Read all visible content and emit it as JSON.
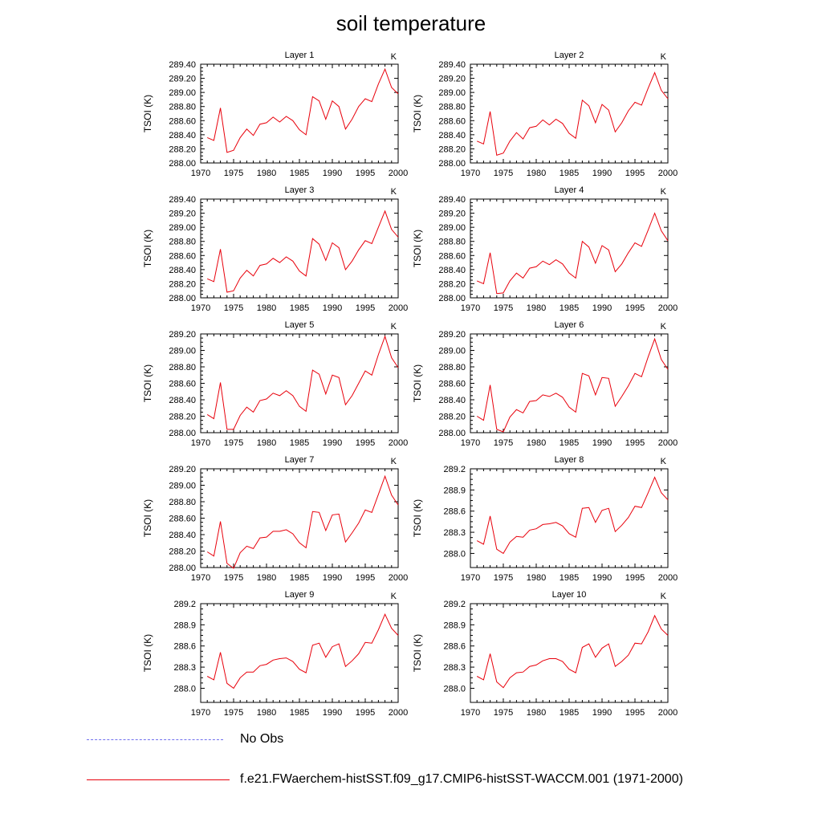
{
  "title": "soil temperature",
  "legend": {
    "obs_label": "No Obs",
    "model_label": "f.e21.FWaerchem-histSST.f09_g17.CMIP6-histSST-WACCM.001 (1971-2000)",
    "obs_color": "#7070ee",
    "model_color": "#e8000b"
  },
  "chart_data": [
    {
      "type": "line",
      "title": "Layer 1",
      "units": "K",
      "ylabel": "TSOI  (K)",
      "xlim": [
        1970,
        2000
      ],
      "ylim": [
        288.0,
        289.4
      ],
      "xticks": [
        1970,
        1975,
        1980,
        1985,
        1990,
        1995,
        2000
      ],
      "yticks": [
        "288.00",
        "288.20",
        "288.40",
        "288.60",
        "288.80",
        "289.00",
        "289.20",
        "289.40"
      ],
      "x": [
        1971,
        1972,
        1973,
        1974,
        1975,
        1976,
        1977,
        1978,
        1979,
        1980,
        1981,
        1982,
        1983,
        1984,
        1985,
        1986,
        1987,
        1988,
        1989,
        1990,
        1991,
        1992,
        1993,
        1994,
        1995,
        1996,
        1997,
        1998,
        1999,
        2000
      ],
      "series": [
        {
          "values": [
            288.36,
            288.32,
            288.78,
            288.15,
            288.18,
            288.36,
            288.48,
            288.39,
            288.55,
            288.57,
            288.65,
            288.58,
            288.66,
            288.6,
            288.47,
            288.4,
            288.94,
            288.88,
            288.62,
            288.88,
            288.8,
            288.48,
            288.62,
            288.8,
            288.91,
            288.87,
            289.12,
            289.33,
            289.07,
            288.98
          ]
        }
      ]
    },
    {
      "type": "line",
      "title": "Layer 2",
      "units": "K",
      "ylabel": "TSOI  (K)",
      "xlim": [
        1970,
        2000
      ],
      "ylim": [
        288.0,
        289.4
      ],
      "xticks": [
        1970,
        1975,
        1980,
        1985,
        1990,
        1995,
        2000
      ],
      "yticks": [
        "288.00",
        "288.20",
        "288.40",
        "288.60",
        "288.80",
        "289.00",
        "289.20",
        "289.40"
      ],
      "x": [
        1971,
        1972,
        1973,
        1974,
        1975,
        1976,
        1977,
        1978,
        1979,
        1980,
        1981,
        1982,
        1983,
        1984,
        1985,
        1986,
        1987,
        1988,
        1989,
        1990,
        1991,
        1992,
        1993,
        1994,
        1995,
        1996,
        1997,
        1998,
        1999,
        2000
      ],
      "series": [
        {
          "values": [
            288.31,
            288.27,
            288.73,
            288.11,
            288.14,
            288.31,
            288.43,
            288.34,
            288.5,
            288.52,
            288.61,
            288.54,
            288.62,
            288.56,
            288.42,
            288.35,
            288.89,
            288.81,
            288.57,
            288.83,
            288.75,
            288.44,
            288.57,
            288.74,
            288.86,
            288.82,
            289.06,
            289.28,
            289.03,
            288.91
          ]
        }
      ]
    },
    {
      "type": "line",
      "title": "Layer 3",
      "units": "K",
      "ylabel": "TSOI  (K)",
      "xlim": [
        1970,
        2000
      ],
      "ylim": [
        288.0,
        289.4
      ],
      "xticks": [
        1970,
        1975,
        1980,
        1985,
        1990,
        1995,
        2000
      ],
      "yticks": [
        "288.00",
        "288.20",
        "288.40",
        "288.60",
        "288.80",
        "289.00",
        "289.20",
        "289.40"
      ],
      "x": [
        1971,
        1972,
        1973,
        1974,
        1975,
        1976,
        1977,
        1978,
        1979,
        1980,
        1981,
        1982,
        1983,
        1984,
        1985,
        1986,
        1987,
        1988,
        1989,
        1990,
        1991,
        1992,
        1993,
        1994,
        1995,
        1996,
        1997,
        1998,
        1999,
        2000
      ],
      "series": [
        {
          "values": [
            288.27,
            288.23,
            288.69,
            288.08,
            288.1,
            288.28,
            288.39,
            288.31,
            288.46,
            288.48,
            288.56,
            288.5,
            288.58,
            288.52,
            288.38,
            288.31,
            288.84,
            288.76,
            288.53,
            288.78,
            288.71,
            288.4,
            288.52,
            288.68,
            288.81,
            288.77,
            289.0,
            289.23,
            288.97,
            288.86
          ]
        }
      ]
    },
    {
      "type": "line",
      "title": "Layer 4",
      "units": "K",
      "ylabel": "TSOI  (K)",
      "xlim": [
        1970,
        2000
      ],
      "ylim": [
        288.0,
        289.4
      ],
      "xticks": [
        1970,
        1975,
        1980,
        1985,
        1990,
        1995,
        2000
      ],
      "yticks": [
        "288.00",
        "288.20",
        "288.40",
        "288.60",
        "288.80",
        "289.00",
        "289.20",
        "289.40"
      ],
      "x": [
        1971,
        1972,
        1973,
        1974,
        1975,
        1976,
        1977,
        1978,
        1979,
        1980,
        1981,
        1982,
        1983,
        1984,
        1985,
        1986,
        1987,
        1988,
        1989,
        1990,
        1991,
        1992,
        1993,
        1994,
        1995,
        1996,
        1997,
        1998,
        1999,
        2000
      ],
      "series": [
        {
          "values": [
            288.24,
            288.2,
            288.64,
            288.06,
            288.07,
            288.24,
            288.35,
            288.28,
            288.42,
            288.44,
            288.52,
            288.47,
            288.54,
            288.48,
            288.35,
            288.28,
            288.8,
            288.72,
            288.49,
            288.74,
            288.68,
            288.37,
            288.48,
            288.64,
            288.78,
            288.73,
            288.96,
            289.2,
            288.95,
            288.81
          ]
        }
      ]
    },
    {
      "type": "line",
      "title": "Layer 5",
      "units": "K",
      "ylabel": "TSOI  (K)",
      "xlim": [
        1970,
        2000
      ],
      "ylim": [
        288.0,
        289.2
      ],
      "xticks": [
        1970,
        1975,
        1980,
        1985,
        1990,
        1995,
        2000
      ],
      "yticks": [
        "288.00",
        "288.20",
        "288.40",
        "288.60",
        "288.80",
        "289.00",
        "289.20"
      ],
      "x": [
        1971,
        1972,
        1973,
        1974,
        1975,
        1976,
        1977,
        1978,
        1979,
        1980,
        1981,
        1982,
        1983,
        1984,
        1985,
        1986,
        1987,
        1988,
        1989,
        1990,
        1991,
        1992,
        1993,
        1994,
        1995,
        1996,
        1997,
        1998,
        1999,
        2000
      ],
      "series": [
        {
          "values": [
            288.22,
            288.17,
            288.61,
            288.04,
            288.04,
            288.21,
            288.31,
            288.25,
            288.39,
            288.41,
            288.48,
            288.45,
            288.51,
            288.45,
            288.32,
            288.26,
            288.76,
            288.71,
            288.47,
            288.7,
            288.67,
            288.34,
            288.45,
            288.6,
            288.75,
            288.7,
            288.95,
            289.17,
            288.91,
            288.79
          ]
        }
      ]
    },
    {
      "type": "line",
      "title": "Layer 6",
      "units": "K",
      "ylabel": "TSOI  (K)",
      "xlim": [
        1970,
        2000
      ],
      "ylim": [
        288.0,
        289.2
      ],
      "xticks": [
        1970,
        1975,
        1980,
        1985,
        1990,
        1995,
        2000
      ],
      "yticks": [
        "288.00",
        "288.20",
        "288.40",
        "288.60",
        "288.80",
        "289.00",
        "289.20"
      ],
      "x": [
        1971,
        1972,
        1973,
        1974,
        1975,
        1976,
        1977,
        1978,
        1979,
        1980,
        1981,
        1982,
        1983,
        1984,
        1985,
        1986,
        1987,
        1988,
        1989,
        1990,
        1991,
        1992,
        1993,
        1994,
        1995,
        1996,
        1997,
        1998,
        1999,
        2000
      ],
      "series": [
        {
          "values": [
            288.2,
            288.15,
            288.58,
            288.04,
            288.01,
            288.19,
            288.28,
            288.24,
            288.38,
            288.39,
            288.46,
            288.44,
            288.48,
            288.43,
            288.31,
            288.25,
            288.72,
            288.69,
            288.46,
            288.67,
            288.66,
            288.32,
            288.44,
            288.57,
            288.72,
            288.68,
            288.92,
            289.14,
            288.89,
            288.77
          ]
        }
      ]
    },
    {
      "type": "line",
      "title": "Layer 7",
      "units": "K",
      "ylabel": "TSOI  (K)",
      "xlim": [
        1970,
        2000
      ],
      "ylim": [
        288.0,
        289.2
      ],
      "xticks": [
        1970,
        1975,
        1980,
        1985,
        1990,
        1995,
        2000
      ],
      "yticks": [
        "288.00",
        "288.20",
        "288.40",
        "288.60",
        "288.80",
        "289.00",
        "289.20"
      ],
      "x": [
        1971,
        1972,
        1973,
        1974,
        1975,
        1976,
        1977,
        1978,
        1979,
        1980,
        1981,
        1982,
        1983,
        1984,
        1985,
        1986,
        1987,
        1988,
        1989,
        1990,
        1991,
        1992,
        1993,
        1994,
        1995,
        1996,
        1997,
        1998,
        1999,
        2000
      ],
      "series": [
        {
          "values": [
            288.19,
            288.14,
            288.56,
            288.05,
            287.99,
            288.18,
            288.26,
            288.23,
            288.36,
            288.37,
            288.44,
            288.44,
            288.46,
            288.41,
            288.3,
            288.24,
            288.68,
            288.67,
            288.45,
            288.64,
            288.65,
            288.31,
            288.42,
            288.54,
            288.7,
            288.67,
            288.89,
            289.11,
            288.88,
            288.76
          ]
        }
      ]
    },
    {
      "type": "line",
      "title": "Layer 8",
      "units": "K",
      "ylabel": "TSOI  (K)",
      "xlim": [
        1970,
        2000
      ],
      "ylim": [
        287.8,
        289.2
      ],
      "xticks": [
        1970,
        1975,
        1980,
        1985,
        1990,
        1995,
        2000
      ],
      "yticks": [
        "288.0",
        "288.3",
        "288.6",
        "288.9",
        "289.2"
      ],
      "x": [
        1971,
        1972,
        1973,
        1974,
        1975,
        1976,
        1977,
        1978,
        1979,
        1980,
        1981,
        1982,
        1983,
        1984,
        1985,
        1986,
        1987,
        1988,
        1989,
        1990,
        1991,
        1992,
        1993,
        1994,
        1995,
        1996,
        1997,
        1998,
        1999,
        2000
      ],
      "series": [
        {
          "values": [
            288.18,
            288.13,
            288.53,
            288.06,
            288.0,
            288.16,
            288.24,
            288.23,
            288.33,
            288.35,
            288.41,
            288.42,
            288.44,
            288.39,
            288.28,
            288.23,
            288.64,
            288.65,
            288.44,
            288.61,
            288.64,
            288.31,
            288.4,
            288.51,
            288.67,
            288.65,
            288.86,
            289.08,
            288.86,
            288.76
          ]
        }
      ]
    },
    {
      "type": "line",
      "title": "Layer 9",
      "units": "K",
      "ylabel": "TSOI  (K)",
      "xlim": [
        1970,
        2000
      ],
      "ylim": [
        287.8,
        289.2
      ],
      "xticks": [
        1970,
        1975,
        1980,
        1985,
        1990,
        1995,
        2000
      ],
      "yticks": [
        "288.0",
        "288.3",
        "288.6",
        "288.9",
        "289.2"
      ],
      "x": [
        1971,
        1972,
        1973,
        1974,
        1975,
        1976,
        1977,
        1978,
        1979,
        1980,
        1981,
        1982,
        1983,
        1984,
        1985,
        1986,
        1987,
        1988,
        1989,
        1990,
        1991,
        1992,
        1993,
        1994,
        1995,
        1996,
        1997,
        1998,
        1999,
        2000
      ],
      "series": [
        {
          "values": [
            288.17,
            288.12,
            288.51,
            288.07,
            288.0,
            288.15,
            288.23,
            288.23,
            288.32,
            288.34,
            288.4,
            288.42,
            288.43,
            288.38,
            288.27,
            288.22,
            288.61,
            288.64,
            288.44,
            288.59,
            288.63,
            288.31,
            288.39,
            288.49,
            288.65,
            288.64,
            288.83,
            289.05,
            288.85,
            288.75
          ]
        }
      ]
    },
    {
      "type": "line",
      "title": "Layer 10",
      "units": "K",
      "ylabel": "TSOI  (K)",
      "xlim": [
        1970,
        2000
      ],
      "ylim": [
        287.8,
        289.2
      ],
      "xticks": [
        1970,
        1975,
        1980,
        1985,
        1990,
        1995,
        2000
      ],
      "yticks": [
        "288.0",
        "288.3",
        "288.6",
        "288.9",
        "289.2"
      ],
      "x": [
        1971,
        1972,
        1973,
        1974,
        1975,
        1976,
        1977,
        1978,
        1979,
        1980,
        1981,
        1982,
        1983,
        1984,
        1985,
        1986,
        1987,
        1988,
        1989,
        1990,
        1991,
        1992,
        1993,
        1994,
        1995,
        1996,
        1997,
        1998,
        1999,
        2000
      ],
      "series": [
        {
          "values": [
            288.17,
            288.12,
            288.49,
            288.09,
            288.01,
            288.15,
            288.22,
            288.23,
            288.31,
            288.33,
            288.39,
            288.42,
            288.42,
            288.38,
            288.27,
            288.22,
            288.58,
            288.63,
            288.44,
            288.57,
            288.63,
            288.31,
            288.38,
            288.47,
            288.64,
            288.63,
            288.8,
            289.03,
            288.84,
            288.75
          ]
        }
      ]
    }
  ]
}
